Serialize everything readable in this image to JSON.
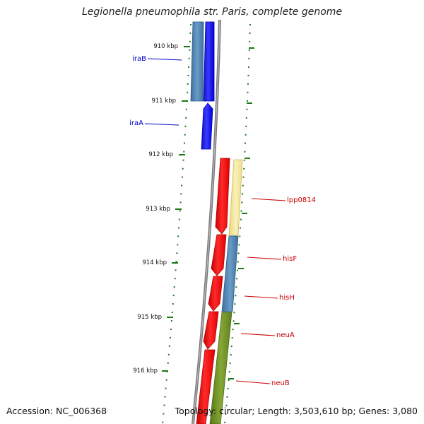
{
  "title": "Legionella pneumophila str. Paris, complete genome",
  "footer": {
    "accession": "Accession: NC_006368",
    "summary": "Topology: circular; Length: 3,503,610 bp; Genes: 3,080"
  },
  "scale_labels": [
    "910 kbp",
    "911 kbp",
    "912 kbp",
    "913 kbp",
    "914 kbp",
    "915 kbp",
    "916 kbp"
  ],
  "genes": [
    {
      "name": "iraB",
      "color": "#0000cc"
    },
    {
      "name": "iraA",
      "color": "#0000cc"
    },
    {
      "name": "lpp0814",
      "color": "#cc0000"
    },
    {
      "name": "hisF",
      "color": "#cc0000"
    },
    {
      "name": "hisH",
      "color": "#cc0000"
    },
    {
      "name": "neuA",
      "color": "#cc0000"
    },
    {
      "name": "neuB",
      "color": "#cc0000"
    }
  ],
  "colors": {
    "forward_cds": "#0000ff",
    "reverse_cds": "#ff0000",
    "cog_blue": "#4682b4",
    "cog_yellow": "#f3e49a",
    "cog_green": "#6b8e23",
    "tick": "#1a7a1a",
    "backbone": "#888888"
  }
}
